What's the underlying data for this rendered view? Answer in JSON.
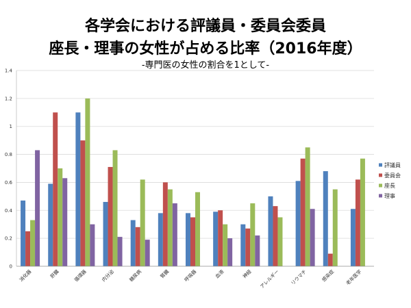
{
  "chart_data": {
    "type": "bar",
    "title": [
      "各学会における評議員・委員会委員",
      "座長・理事の女性が占める比率（2016年度）"
    ],
    "subtitle": "-専門医の女性の割合を1として-",
    "categories": [
      "消化器",
      "肝臓",
      "循環器",
      "内分泌",
      "糖尿病",
      "腎臓",
      "呼吸器",
      "血液",
      "神経",
      "アレルギー",
      "リウマチ",
      "感染症",
      "老年医学"
    ],
    "series": [
      {
        "name": "評議員",
        "color": "#4F81BD",
        "values": [
          0.47,
          0.59,
          1.1,
          0.46,
          0.33,
          0.38,
          0.38,
          0.39,
          0.3,
          0.5,
          0.61,
          0.68,
          0.41
        ]
      },
      {
        "name": "委員会",
        "color": "#C0504D",
        "values": [
          0.25,
          1.1,
          0.9,
          0.71,
          0.28,
          0.6,
          0.35,
          0.4,
          0.27,
          0.43,
          0.77,
          0.09,
          0.62
        ]
      },
      {
        "name": "座長",
        "color": "#9BBB59",
        "values": [
          0.33,
          0.7,
          1.2,
          0.83,
          0.62,
          0.55,
          0.53,
          0.3,
          0.45,
          0.35,
          0.85,
          0.55,
          0.77
        ]
      },
      {
        "name": "理事",
        "color": "#8064A2",
        "values": [
          0.83,
          0.63,
          0.3,
          0.21,
          0.19,
          0.45,
          null,
          0.2,
          0.22,
          null,
          0.41,
          null,
          null
        ]
      }
    ],
    "ylim": [
      0,
      1.4
    ],
    "yticks": [
      "0",
      "0.2",
      "0.4",
      "0.6",
      "0.8",
      "1",
      "1.2",
      "1.4"
    ],
    "grid": true,
    "legend": "right"
  }
}
